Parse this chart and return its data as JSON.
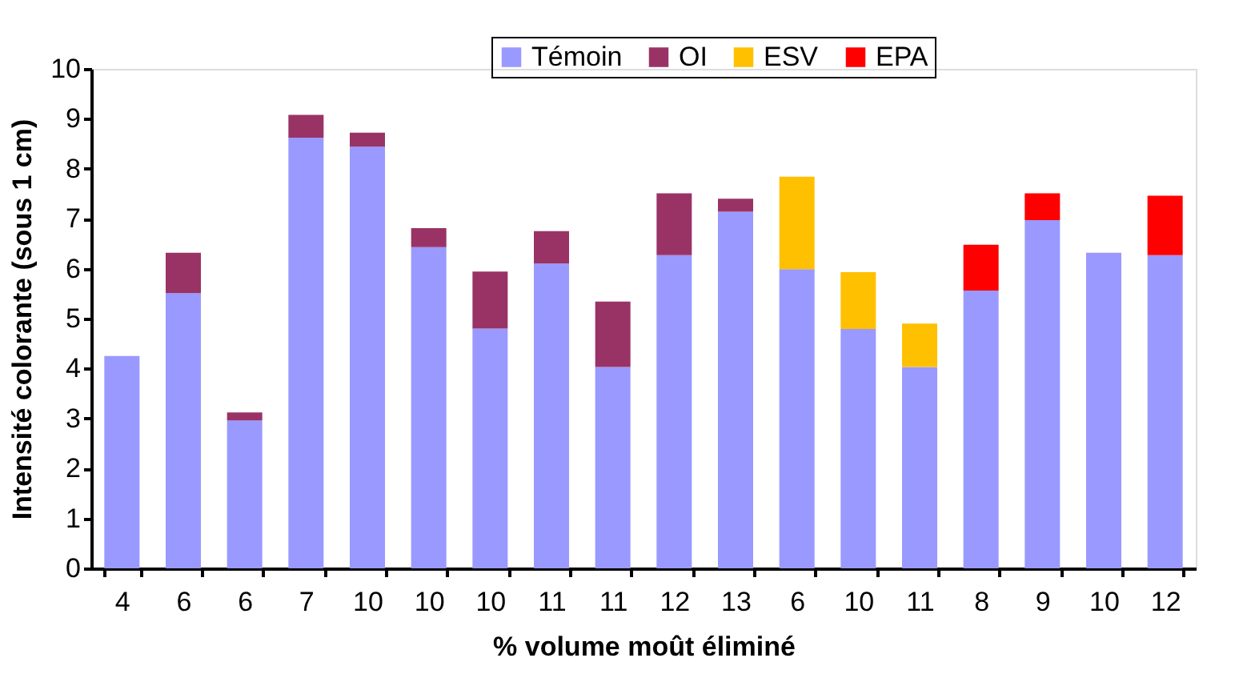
{
  "chart_data": {
    "type": "bar",
    "stacked": true,
    "xlabel": "% volume moût éliminé",
    "ylabel": "Intensité colorante (sous 1 cm)",
    "categories": [
      "4",
      "6",
      "6",
      "7",
      "10",
      "10",
      "10",
      "11",
      "11",
      "12",
      "13",
      "6",
      "10",
      "11",
      "8",
      "9",
      "10",
      "12"
    ],
    "series": [
      {
        "name": "Témoin",
        "color": "#9999ff",
        "values": [
          4.25,
          5.51,
          2.96,
          8.62,
          8.44,
          6.43,
          4.8,
          6.1,
          4.03,
          6.27,
          7.14,
          5.99,
          4.79,
          4.03,
          5.56,
          6.97,
          6.32,
          6.27
        ]
      },
      {
        "name": "OI",
        "color": "#993366",
        "values": [
          null,
          0.81,
          0.16,
          0.46,
          0.28,
          0.38,
          1.14,
          0.65,
          1.31,
          1.24,
          0.26,
          null,
          null,
          null,
          null,
          null,
          null,
          null
        ]
      },
      {
        "name": "ESV",
        "color": "#ffc000",
        "values": [
          null,
          null,
          null,
          null,
          null,
          null,
          null,
          null,
          null,
          null,
          null,
          1.85,
          1.14,
          0.87,
          null,
          null,
          null,
          null
        ]
      },
      {
        "name": "EPA",
        "color": "#ff0000",
        "values": [
          null,
          null,
          null,
          null,
          null,
          null,
          null,
          null,
          null,
          null,
          null,
          null,
          null,
          null,
          0.92,
          0.54,
          null,
          1.19
        ]
      }
    ],
    "ylim": [
      0,
      10
    ],
    "yticks": [
      0,
      1,
      2,
      3,
      4,
      5,
      6,
      7,
      8,
      9,
      10
    ],
    "grid": false,
    "legend": "top"
  }
}
